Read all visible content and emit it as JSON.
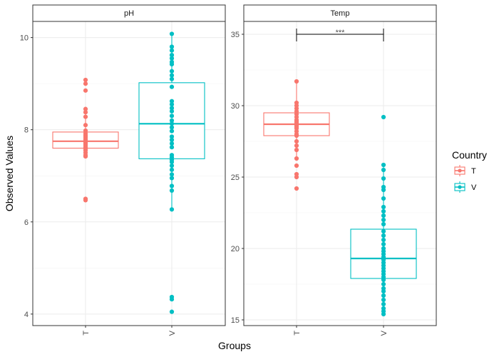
{
  "chart_data": {
    "type": "box",
    "xlabel": "Groups",
    "ylabel": "Observed Values",
    "legend": {
      "title": "Country",
      "placement": "right",
      "entries": [
        {
          "label": "T",
          "color": "#F8766D"
        },
        {
          "label": "V",
          "color": "#00BFC4"
        }
      ]
    },
    "categories": [
      "T",
      "V"
    ],
    "panels": [
      {
        "title": "pH",
        "ylim": [
          3.75,
          10.35
        ],
        "yticks": [
          "4",
          "6",
          "8",
          "10"
        ],
        "series": [
          {
            "name": "T",
            "color": "#F8766D",
            "q1": 7.6,
            "median": 7.75,
            "q3": 7.95,
            "whisker_low": 7.4,
            "whisker_high": 8.45,
            "points": [
              9.08,
              9.0,
              8.85,
              8.45,
              8.38,
              8.28,
              8.1,
              7.98,
              7.92,
              7.88,
              7.85,
              7.82,
              7.78,
              7.75,
              7.72,
              7.7,
              7.68,
              7.65,
              7.62,
              7.58,
              7.55,
              7.5,
              7.45,
              7.42,
              6.5,
              6.47
            ]
          },
          {
            "name": "V",
            "color": "#00BFC4",
            "q1": 7.37,
            "median": 8.13,
            "q3": 9.02,
            "whisker_low": 6.27,
            "whisker_high": 10.08,
            "points": [
              10.08,
              9.8,
              9.72,
              9.62,
              9.55,
              9.47,
              9.42,
              9.27,
              9.18,
              9.1,
              8.93,
              8.62,
              8.55,
              8.47,
              8.4,
              8.3,
              8.2,
              8.13,
              8.05,
              7.97,
              7.85,
              7.78,
              7.7,
              7.62,
              7.45,
              7.4,
              7.35,
              7.3,
              7.22,
              7.13,
              7.03,
              6.95,
              6.78,
              6.68,
              6.27,
              4.37,
              4.32,
              4.05
            ]
          }
        ]
      },
      {
        "title": "Temp",
        "ylim": [
          14.6,
          35.9
        ],
        "yticks": [
          "15",
          "20",
          "25",
          "30",
          "35"
        ],
        "annotation": "***",
        "series": [
          {
            "name": "T",
            "color": "#F8766D",
            "q1": 27.9,
            "median": 28.7,
            "q3": 29.5,
            "whisker_low": 26.3,
            "whisker_high": 31.7,
            "points": [
              31.7,
              30.2,
              30.0,
              29.8,
              29.6,
              29.4,
              29.2,
              29.0,
              28.9,
              28.8,
              28.7,
              28.6,
              28.5,
              28.4,
              28.2,
              28.0,
              27.9,
              27.5,
              27.2,
              26.9,
              26.3,
              25.8,
              25.2,
              25.0,
              24.2
            ]
          },
          {
            "name": "V",
            "color": "#00BFC4",
            "q1": 17.9,
            "median": 19.3,
            "q3": 21.35,
            "whisker_low": 15.4,
            "whisker_high": 25.85,
            "points": [
              29.2,
              25.85,
              25.5,
              24.9,
              24.3,
              24.1,
              23.5,
              22.9,
              22.6,
              22.3,
              22.0,
              21.7,
              21.2,
              20.9,
              20.6,
              20.3,
              20.0,
              19.8,
              19.6,
              19.4,
              19.2,
              19.0,
              18.8,
              18.6,
              18.4,
              18.2,
              18.0,
              17.8,
              17.5,
              17.2,
              17.0,
              16.7,
              16.4,
              16.1,
              15.8,
              15.6,
              15.4
            ]
          }
        ]
      }
    ]
  }
}
